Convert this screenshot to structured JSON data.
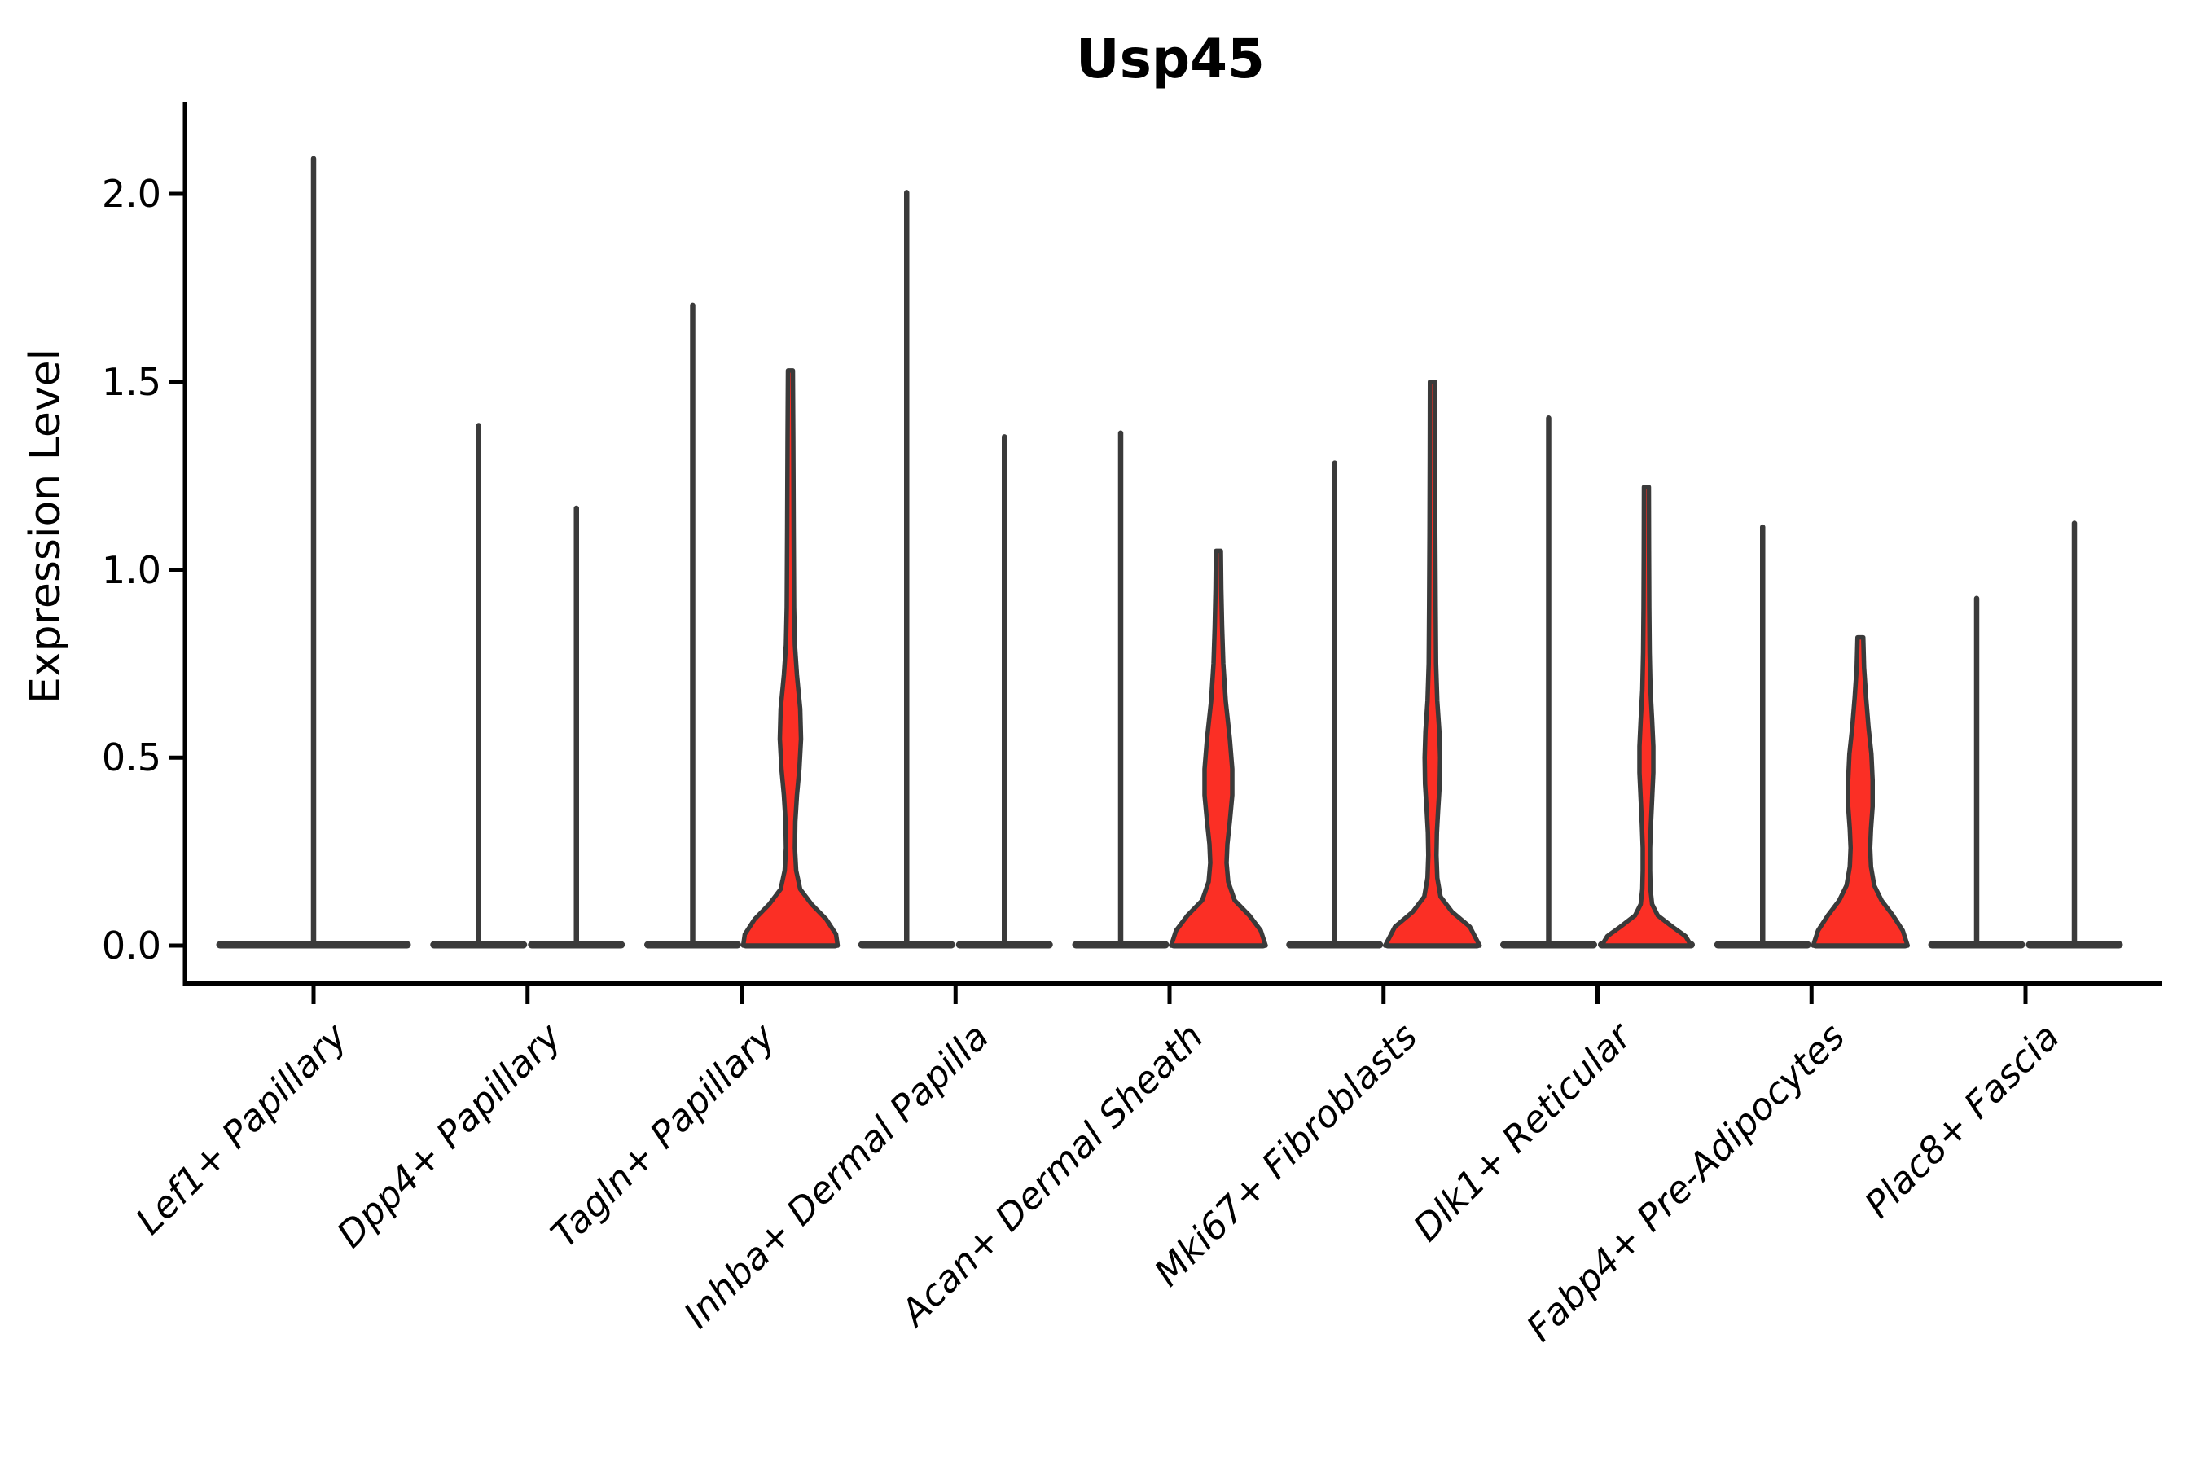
{
  "chart_data": {
    "type": "violin",
    "title": "Usp45",
    "ylabel": "Expression Level",
    "ylim": [
      0,
      2.15
    ],
    "yticks": [
      0.0,
      0.5,
      1.0,
      1.5,
      2.0
    ],
    "ytick_labels": [
      "0.0",
      "0.5",
      "1.0",
      "1.5",
      "2.0"
    ],
    "grid": false,
    "legend": "none",
    "colors": {
      "violin_fill": "#fb2f25",
      "violin_outline": "#3a3a3a",
      "axis": "#000000",
      "text": "#000000"
    },
    "categories": [
      "Lef1+ Papillary",
      "Dpp4+ Papillary",
      "Tagln+ Papillary",
      "Inhba+ Dermal Papilla",
      "Acan+ Dermal Sheath",
      "Mki67+ Fibroblasts",
      "Dlk1+ Reticular",
      "Fabp4+ Pre-Adipocytes",
      "Plac8+ Fascia"
    ],
    "groups": [
      {
        "category": "Lef1+ Papillary",
        "violins": [
          {
            "side": "single",
            "max_expression": 2.1,
            "filled": false
          }
        ]
      },
      {
        "category": "Dpp4+ Papillary",
        "violins": [
          {
            "side": "left",
            "max_expression": 1.39,
            "filled": false
          },
          {
            "side": "right",
            "max_expression": 1.17,
            "filled": false
          }
        ]
      },
      {
        "category": "Tagln+ Papillary",
        "violins": [
          {
            "side": "left",
            "max_expression": 1.71,
            "filled": false
          },
          {
            "side": "right",
            "max_expression": 1.53,
            "filled": true,
            "profile_v_hw": [
              [
                1.53,
                3
              ],
              [
                1.35,
                3.5
              ],
              [
                1.1,
                4
              ],
              [
                0.9,
                4.5
              ],
              [
                0.8,
                5.5
              ],
              [
                0.72,
                8
              ],
              [
                0.63,
                12
              ],
              [
                0.55,
                13
              ],
              [
                0.47,
                11
              ],
              [
                0.4,
                8
              ],
              [
                0.33,
                6
              ],
              [
                0.26,
                5.5
              ],
              [
                0.2,
                7
              ],
              [
                0.15,
                12
              ],
              [
                0.11,
                26
              ],
              [
                0.07,
                44
              ],
              [
                0.03,
                56
              ],
              [
                0.0,
                58
              ]
            ]
          }
        ]
      },
      {
        "category": "Inhba+ Dermal Papilla",
        "violins": [
          {
            "side": "left",
            "max_expression": 2.01,
            "filled": false
          },
          {
            "side": "right",
            "max_expression": 1.36,
            "filled": false
          }
        ]
      },
      {
        "category": "Acan+ Dermal Sheath",
        "violins": [
          {
            "side": "left",
            "max_expression": 1.37,
            "filled": false
          },
          {
            "side": "right",
            "max_expression": 1.05,
            "filled": true,
            "profile_v_hw": [
              [
                1.05,
                3
              ],
              [
                0.95,
                3.5
              ],
              [
                0.85,
                4.5
              ],
              [
                0.75,
                6
              ],
              [
                0.65,
                9
              ],
              [
                0.55,
                14
              ],
              [
                0.47,
                17
              ],
              [
                0.4,
                17
              ],
              [
                0.33,
                14
              ],
              [
                0.27,
                11
              ],
              [
                0.22,
                10
              ],
              [
                0.17,
                12
              ],
              [
                0.12,
                20
              ],
              [
                0.08,
                38
              ],
              [
                0.04,
                52
              ],
              [
                0.0,
                58
              ]
            ]
          }
        ]
      },
      {
        "category": "Mki67+ Fibroblasts",
        "violins": [
          {
            "side": "left",
            "max_expression": 1.29,
            "filled": false
          },
          {
            "side": "right",
            "max_expression": 1.5,
            "filled": true,
            "profile_v_hw": [
              [
                1.5,
                3
              ],
              [
                1.3,
                3.2
              ],
              [
                1.1,
                3.5
              ],
              [
                0.9,
                4
              ],
              [
                0.75,
                4.5
              ],
              [
                0.65,
                6
              ],
              [
                0.57,
                8.5
              ],
              [
                0.5,
                9.5
              ],
              [
                0.43,
                9
              ],
              [
                0.36,
                7
              ],
              [
                0.3,
                5.5
              ],
              [
                0.24,
                5
              ],
              [
                0.18,
                6
              ],
              [
                0.13,
                10
              ],
              [
                0.09,
                24
              ],
              [
                0.05,
                46
              ],
              [
                0.0,
                58
              ]
            ]
          }
        ]
      },
      {
        "category": "Dlk1+ Reticular",
        "violins": [
          {
            "side": "left",
            "max_expression": 1.41,
            "filled": false
          },
          {
            "side": "right",
            "max_expression": 1.22,
            "filled": true,
            "profile_v_hw": [
              [
                1.22,
                3
              ],
              [
                1.05,
                3.2
              ],
              [
                0.9,
                3.5
              ],
              [
                0.78,
                4
              ],
              [
                0.68,
                5
              ],
              [
                0.6,
                7
              ],
              [
                0.53,
                8.5
              ],
              [
                0.46,
                8.5
              ],
              [
                0.39,
                7
              ],
              [
                0.32,
                5.5
              ],
              [
                0.26,
                4.5
              ],
              [
                0.2,
                4.5
              ],
              [
                0.15,
                5
              ],
              [
                0.11,
                7
              ],
              [
                0.08,
                14
              ],
              [
                0.05,
                32
              ],
              [
                0.025,
                48
              ],
              [
                0.0,
                55
              ]
            ]
          }
        ]
      },
      {
        "category": "Fabp4+ Pre-Adipocytes",
        "violins": [
          {
            "side": "left",
            "max_expression": 1.12,
            "filled": false
          },
          {
            "side": "right",
            "max_expression": 0.82,
            "filled": true,
            "profile_v_hw": [
              [
                0.82,
                3.5
              ],
              [
                0.74,
                4.5
              ],
              [
                0.66,
                7
              ],
              [
                0.58,
                10
              ],
              [
                0.51,
                13.5
              ],
              [
                0.44,
                15
              ],
              [
                0.37,
                15
              ],
              [
                0.31,
                13
              ],
              [
                0.26,
                12
              ],
              [
                0.21,
                13
              ],
              [
                0.16,
                17
              ],
              [
                0.12,
                26
              ],
              [
                0.08,
                40
              ],
              [
                0.04,
                52
              ],
              [
                0.0,
                58
              ]
            ]
          }
        ]
      },
      {
        "category": "Plac8+ Fascia",
        "violins": [
          {
            "side": "left",
            "max_expression": 0.93,
            "filled": false
          },
          {
            "side": "right",
            "max_expression": 1.13,
            "filled": false
          }
        ]
      }
    ]
  }
}
